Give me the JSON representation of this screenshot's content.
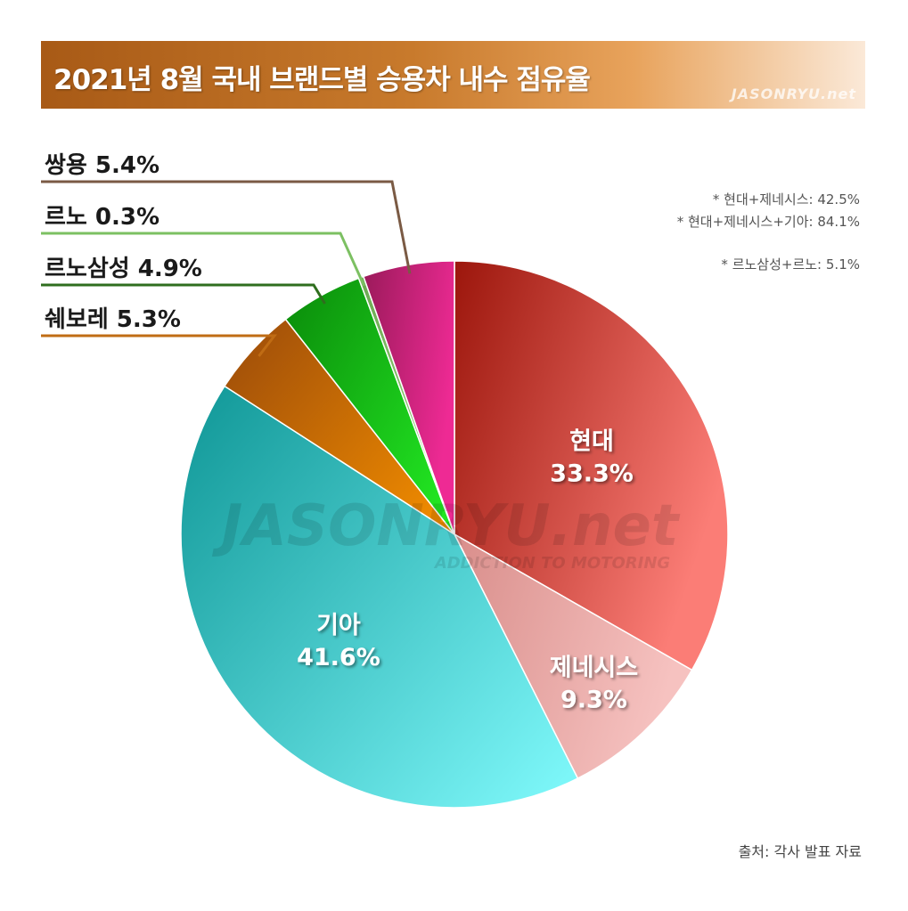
{
  "title": "2021년 8월 국내 브랜드별 승용차 내수 점유율",
  "watermark": "JASONRYU.net",
  "watermark_center": "JASONRYU.net",
  "watermark_tagline": "ADDICTION TO MOTORING",
  "notes": [
    "* 현대+제네시스: 42.5%",
    "* 현대+제네시스+기아: 84.1%",
    "* 르노삼성+르노: 5.1%"
  ],
  "source": "출처: 각사 발표 자료",
  "chart_data": {
    "type": "pie",
    "start": "12 o'clock, clockwise",
    "slices": [
      {
        "label": "현대",
        "value": 33.3,
        "display": "33.3%",
        "color": "#c8382f"
      },
      {
        "label": "제네시스",
        "value": 9.3,
        "display": "9.3%",
        "color": "#e8a5a2"
      },
      {
        "label": "기아",
        "value": 41.6,
        "display": "41.6%",
        "color": "#2fbfbf"
      },
      {
        "label": "쉐보레",
        "value": 5.3,
        "display": "5.3%",
        "color": "#c96a0a"
      },
      {
        "label": "르노삼성",
        "value": 4.9,
        "display": "4.9%",
        "color": "#18c618"
      },
      {
        "label": "르노",
        "value": 0.3,
        "display": "0.3%",
        "color": "#90c870"
      },
      {
        "label": "쌍용",
        "value": 5.4,
        "display": "5.4%",
        "color": "#c81e78"
      }
    ],
    "inside_labels": [
      "현대",
      "제네시스",
      "기아"
    ],
    "callout_labels": [
      {
        "text": "쌍용 5.4%",
        "line_color": "#7a5a44"
      },
      {
        "text": "르노 0.3%",
        "line_color": "#7cc062"
      },
      {
        "text": "르노삼성 4.9%",
        "line_color": "#2f6e1e"
      },
      {
        "text": "쉐보레 5.3%",
        "line_color": "#c06c14"
      }
    ]
  }
}
